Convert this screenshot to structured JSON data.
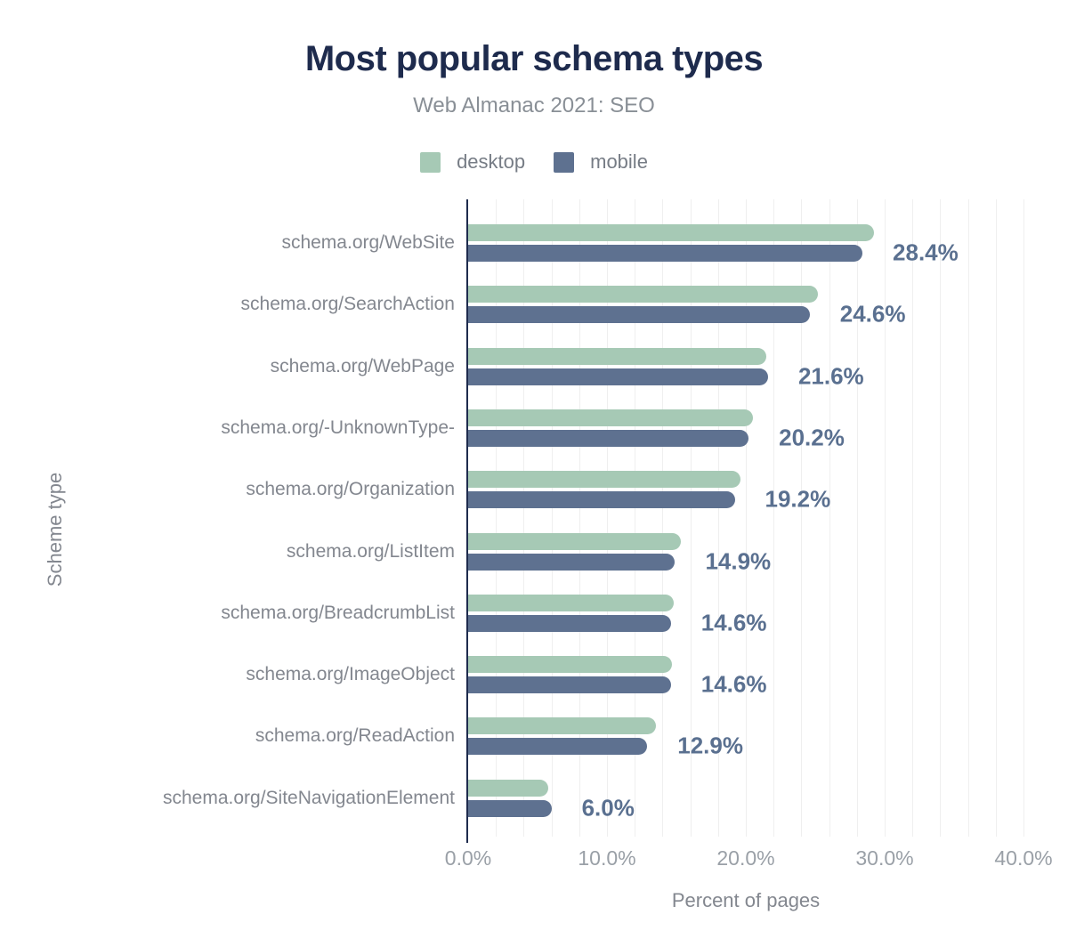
{
  "header": {
    "title": "Most popular schema types",
    "subtitle": "Web Almanac 2021: SEO"
  },
  "legend": [
    {
      "label": "desktop",
      "color": "#a6c9b5"
    },
    {
      "label": "mobile",
      "color": "#5e7190"
    }
  ],
  "colors": {
    "title_text": "#1e2b4d",
    "axis_line": "#1e2b4d",
    "gridline": "#efefef",
    "desktop_bar": "#a6c9b5",
    "mobile_bar": "#5e7190",
    "value_label_text": "#5a7090",
    "category_label_text": "#83878f",
    "tick_label_text": "#9aa0a7",
    "background": "#ffffff"
  },
  "chart_data": {
    "type": "bar",
    "orientation": "horizontal",
    "title": "Most popular schema types",
    "subtitle": "Web Almanac 2021: SEO",
    "xlabel": "Percent of pages",
    "ylabel": "Scheme type",
    "xlim": [
      0,
      40
    ],
    "grid": true,
    "gridline_step": 2,
    "legend_position": "top",
    "x_ticks": [
      "0.0%",
      "10.0%",
      "20.0%",
      "30.0%",
      "40.0%"
    ],
    "x_tick_values": [
      0,
      10,
      20,
      30,
      40
    ],
    "categories": [
      "schema.org/WebSite",
      "schema.org/SearchAction",
      "schema.org/WebPage",
      "schema.org/-UnknownType-",
      "schema.org/Organization",
      "schema.org/ListItem",
      "schema.org/BreadcrumbList",
      "schema.org/ImageObject",
      "schema.org/ReadAction",
      "schema.org/SiteNavigationElement"
    ],
    "series": [
      {
        "name": "desktop",
        "color": "#a6c9b5",
        "values": [
          29.2,
          25.2,
          21.5,
          20.5,
          19.6,
          15.3,
          14.8,
          14.7,
          13.5,
          5.8
        ]
      },
      {
        "name": "mobile",
        "color": "#5e7190",
        "values": [
          28.4,
          24.6,
          21.6,
          20.2,
          19.2,
          14.9,
          14.6,
          14.6,
          12.9,
          6.0
        ]
      }
    ],
    "bar_labels": [
      "28.4%",
      "24.6%",
      "21.6%",
      "20.2%",
      "19.2%",
      "14.9%",
      "14.6%",
      "14.6%",
      "12.9%",
      "6.0%"
    ],
    "bar_label_series": "mobile"
  }
}
